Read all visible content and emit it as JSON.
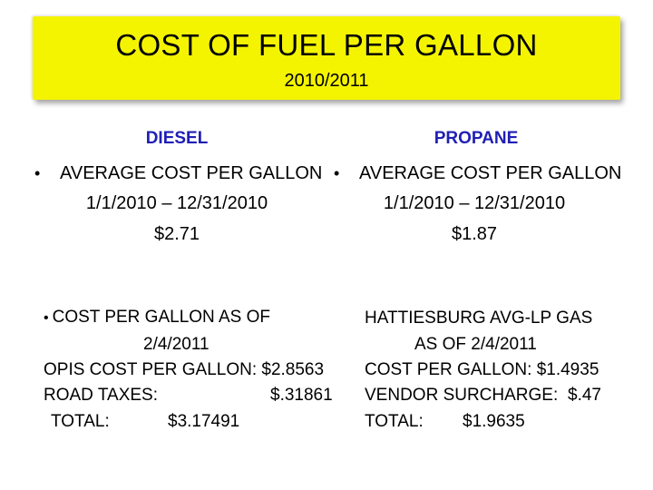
{
  "header": {
    "title": "COST OF FUEL PER GALLON",
    "subtitle": "2010/2011"
  },
  "diesel": {
    "heading": "DIESEL",
    "avg_label": "AVERAGE COST PER GALLON",
    "avg_period": "1/1/2010 – 12/31/2010",
    "avg_price": "$2.71",
    "current_label": "COST PER GALLON AS OF",
    "current_date": "2/4/2011",
    "opis_line": "OPIS COST PER GALLON: $2.8563",
    "road_taxes_label": "ROAD TAXES:",
    "road_taxes_value": "$.31861",
    "total_label": "TOTAL:",
    "total_value": "$3.17491"
  },
  "propane": {
    "heading": "PROPANE",
    "avg_label": "AVERAGE COST PER GALLON",
    "avg_period": "1/1/2010 – 12/31/2010",
    "avg_price": "$1.87",
    "source_line": "HATTIESBURG AVG-LP GAS",
    "current_date_line": "AS OF 2/4/2011",
    "cost_line": "COST PER GALLON: $1.4935",
    "surcharge_label": "VENDOR SURCHARGE:",
    "surcharge_value": "$.47",
    "total_label": "TOTAL:",
    "total_value": "$1.9635"
  },
  "bullet_glyph": "•",
  "colors": {
    "title_background": "#f4f400",
    "heading_text": "#1f1fb5"
  }
}
